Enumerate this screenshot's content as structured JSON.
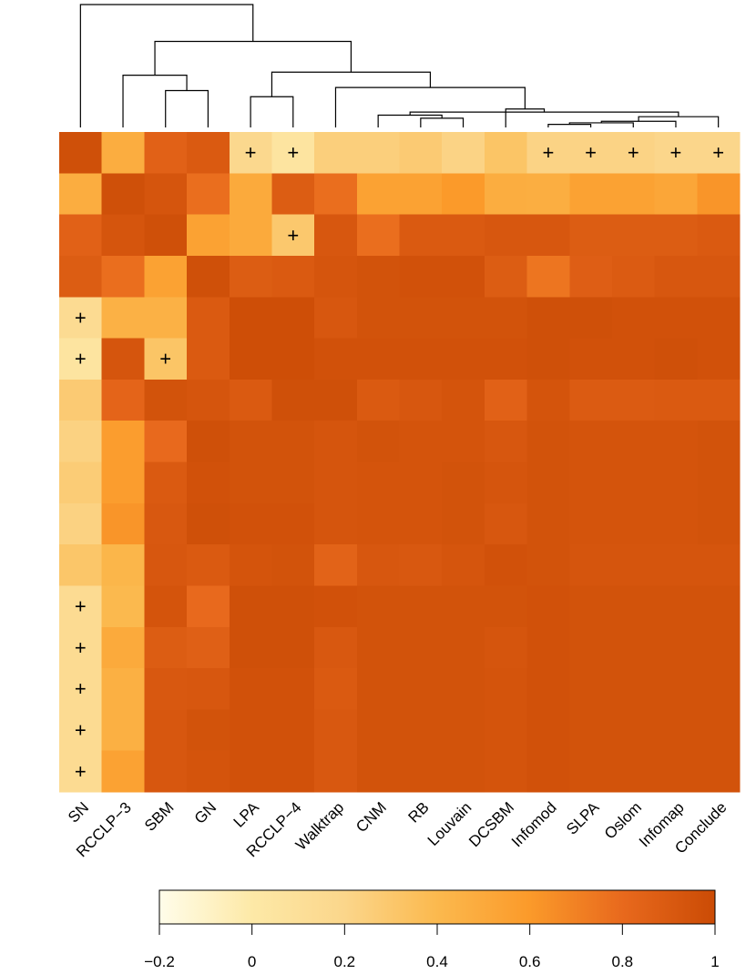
{
  "chart_data": {
    "type": "heatmap",
    "title": "",
    "columns": [
      "SN",
      "RCCLP−3",
      "SBM",
      "GN",
      "LPA",
      "RCCLP−4",
      "Walktrap",
      "CNM",
      "RB",
      "Louvain",
      "DCSBM",
      "Infomod",
      "SLPA",
      "Oslom",
      "Infomap",
      "Conclude"
    ],
    "row_count": 16,
    "values": [
      [
        0.97,
        0.48,
        0.85,
        0.9,
        0.18,
        0.05,
        0.25,
        0.25,
        0.28,
        0.22,
        0.32,
        0.22,
        0.22,
        0.22,
        0.2,
        0.2
      ],
      [
        0.48,
        0.97,
        0.93,
        0.78,
        0.5,
        0.88,
        0.78,
        0.55,
        0.55,
        0.6,
        0.48,
        0.47,
        0.55,
        0.55,
        0.52,
        0.62
      ],
      [
        0.85,
        0.93,
        0.97,
        0.55,
        0.5,
        0.3,
        0.92,
        0.78,
        0.9,
        0.9,
        0.92,
        0.92,
        0.88,
        0.88,
        0.88,
        0.9
      ],
      [
        0.88,
        0.78,
        0.55,
        0.97,
        0.88,
        0.9,
        0.93,
        0.95,
        0.96,
        0.96,
        0.88,
        0.75,
        0.87,
        0.89,
        0.92,
        0.92
      ],
      [
        0.15,
        0.45,
        0.45,
        0.9,
        0.98,
        0.98,
        0.92,
        0.95,
        0.95,
        0.95,
        0.95,
        0.97,
        0.97,
        0.96,
        0.96,
        0.96
      ],
      [
        0.05,
        0.93,
        0.32,
        0.9,
        0.98,
        0.98,
        0.96,
        0.96,
        0.96,
        0.96,
        0.96,
        0.97,
        0.96,
        0.96,
        0.97,
        0.96
      ],
      [
        0.28,
        0.83,
        0.95,
        0.93,
        0.9,
        0.97,
        0.97,
        0.9,
        0.92,
        0.94,
        0.85,
        0.94,
        0.89,
        0.89,
        0.9,
        0.9
      ],
      [
        0.23,
        0.58,
        0.8,
        0.97,
        0.95,
        0.95,
        0.93,
        0.95,
        0.94,
        0.94,
        0.92,
        0.95,
        0.94,
        0.94,
        0.94,
        0.95
      ],
      [
        0.27,
        0.58,
        0.9,
        0.96,
        0.95,
        0.95,
        0.93,
        0.94,
        0.94,
        0.95,
        0.93,
        0.95,
        0.94,
        0.94,
        0.94,
        0.95
      ],
      [
        0.23,
        0.62,
        0.91,
        0.97,
        0.96,
        0.96,
        0.93,
        0.94,
        0.94,
        0.95,
        0.92,
        0.95,
        0.94,
        0.94,
        0.94,
        0.95
      ],
      [
        0.31,
        0.42,
        0.92,
        0.9,
        0.94,
        0.95,
        0.84,
        0.92,
        0.91,
        0.93,
        0.96,
        0.95,
        0.93,
        0.93,
        0.93,
        0.93
      ],
      [
        0.15,
        0.4,
        0.94,
        0.8,
        0.97,
        0.97,
        0.96,
        0.95,
        0.95,
        0.95,
        0.95,
        0.96,
        0.95,
        0.95,
        0.95,
        0.95
      ],
      [
        0.15,
        0.5,
        0.88,
        0.86,
        0.97,
        0.97,
        0.91,
        0.95,
        0.95,
        0.95,
        0.93,
        0.96,
        0.95,
        0.95,
        0.95,
        0.95
      ],
      [
        0.15,
        0.46,
        0.91,
        0.92,
        0.96,
        0.96,
        0.9,
        0.95,
        0.95,
        0.95,
        0.94,
        0.96,
        0.95,
        0.95,
        0.95,
        0.95
      ],
      [
        0.15,
        0.46,
        0.92,
        0.95,
        0.96,
        0.96,
        0.91,
        0.95,
        0.95,
        0.95,
        0.94,
        0.96,
        0.95,
        0.95,
        0.95,
        0.95
      ],
      [
        0.15,
        0.55,
        0.92,
        0.94,
        0.96,
        0.96,
        0.91,
        0.95,
        0.95,
        0.95,
        0.94,
        0.96,
        0.95,
        0.95,
        0.95,
        0.95
      ]
    ],
    "plus_symbol": "+",
    "plus_cells": [
      [
        0,
        4
      ],
      [
        0,
        5
      ],
      [
        0,
        11
      ],
      [
        0,
        12
      ],
      [
        0,
        13
      ],
      [
        0,
        14
      ],
      [
        0,
        15
      ],
      [
        2,
        5
      ],
      [
        4,
        0
      ],
      [
        5,
        0
      ],
      [
        5,
        2
      ],
      [
        11,
        0
      ],
      [
        12,
        0
      ],
      [
        13,
        0
      ],
      [
        14,
        0
      ],
      [
        15,
        0
      ]
    ],
    "dendrogram_merges": [
      [
        -12,
        -13
      ],
      [
        1,
        -14
      ],
      [
        2,
        -15
      ],
      [
        -9,
        -10
      ],
      [
        -16,
        3
      ],
      [
        -8,
        4
      ],
      [
        6,
        5
      ],
      [
        -11,
        7
      ],
      [
        -5,
        -6
      ],
      [
        -3,
        -4
      ],
      [
        -7,
        8
      ],
      [
        -2,
        10
      ],
      [
        11,
        9
      ],
      [
        13,
        12
      ],
      [
        -1,
        14
      ]
    ],
    "dendrogram_heights": [
      0.1,
      0.15,
      0.2,
      0.3,
      0.35,
      0.4,
      0.5,
      0.6,
      1.0,
      1.2,
      1.3,
      1.7,
      1.8,
      2.8,
      4.0
    ],
    "colorbar": {
      "range": [
        -0.2,
        1
      ],
      "ticks": [
        -0.2,
        0,
        0.2,
        0.4,
        0.6,
        0.8,
        1
      ],
      "tick_labels": [
        "−0.2",
        "0",
        "0.2",
        "0.4",
        "0.6",
        "0.8",
        "1"
      ],
      "colors": [
        "#fffdea",
        "#fde9a7",
        "#fbd68b",
        "#fbb94e",
        "#fb9a2a",
        "#e8691d",
        "#cb4b05"
      ]
    }
  }
}
